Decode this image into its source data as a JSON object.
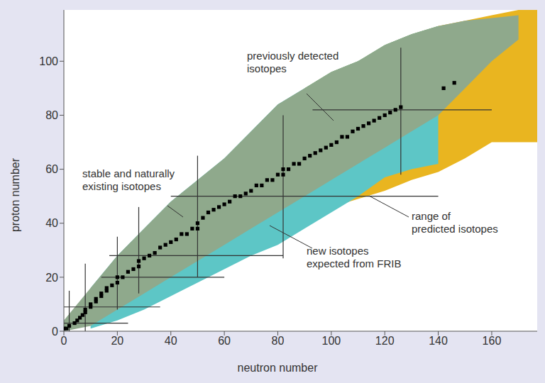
{
  "chart_data": {
    "type": "area",
    "x_label": "neutron number",
    "y_label": "proton number",
    "xlim": [
      0,
      177
    ],
    "xticks": [
      0,
      20,
      40,
      60,
      80,
      100,
      120,
      140,
      160
    ],
    "ylim": [
      0,
      119
    ],
    "yticks": [
      0,
      20,
      40,
      60,
      80,
      100
    ],
    "grid": false,
    "series": [
      {
        "type": "area",
        "color": "#e9b520",
        "x": [
          90,
          100,
          110,
          120,
          130,
          140,
          150,
          160,
          170,
          177
        ],
        "lower": [
          42,
          46,
          49,
          52,
          56,
          59,
          64,
          70,
          70,
          70
        ],
        "upper": [
          90,
          96,
          100,
          106,
          110,
          113,
          115,
          117,
          119,
          119
        ]
      },
      {
        "type": "area",
        "color": "#5dc6c6",
        "x": [
          10,
          20,
          30,
          40,
          50,
          60,
          70,
          80,
          90,
          100,
          110,
          120,
          130,
          140
        ],
        "lower": [
          1,
          4,
          8,
          13,
          18,
          23,
          28,
          32,
          38,
          44,
          50,
          57,
          60,
          62
        ],
        "upper": [
          16,
          28,
          38,
          48,
          56,
          64,
          74,
          84,
          90,
          96,
          100,
          106,
          110,
          113
        ]
      },
      {
        "type": "area",
        "color": "#8fa98c",
        "x": [
          0,
          10,
          20,
          30,
          40,
          50,
          60,
          70,
          80,
          90,
          100,
          110,
          120,
          130,
          140,
          150,
          160,
          170
        ],
        "lower": [
          0,
          2,
          8,
          14,
          20,
          26,
          32,
          38,
          44,
          50,
          56,
          62,
          68,
          74,
          80,
          90,
          100,
          108
        ],
        "upper": [
          4,
          16,
          28,
          38,
          48,
          56,
          64,
          74,
          84,
          90,
          96,
          100,
          106,
          110,
          113,
          115,
          116,
          117
        ]
      },
      {
        "type": "scatter",
        "color": "#000000",
        "marker": "square",
        "x": [
          0,
          1,
          2,
          4,
          5,
          6,
          7,
          8,
          8,
          10,
          10,
          12,
          12,
          14,
          14,
          16,
          16,
          18,
          20,
          20,
          22,
          24,
          26,
          28,
          28,
          30,
          32,
          34,
          36,
          38,
          40,
          42,
          44,
          46,
          48,
          50,
          50,
          52,
          54,
          56,
          58,
          60,
          62,
          64,
          66,
          68,
          70,
          72,
          74,
          76,
          78,
          80,
          82,
          82,
          84,
          86,
          88,
          90,
          92,
          94,
          96,
          98,
          100,
          102,
          104,
          106,
          108,
          110,
          112,
          114,
          116,
          118,
          120,
          122,
          124,
          126,
          142,
          146
        ],
        "y": [
          1,
          1,
          2,
          3,
          4,
          5,
          6,
          7,
          8,
          9,
          10,
          11,
          12,
          13,
          14,
          15,
          16,
          17,
          18,
          20,
          20,
          22,
          23,
          24,
          26,
          27,
          28,
          29,
          31,
          32,
          33,
          34,
          36,
          36,
          38,
          38,
          40,
          42,
          44,
          45,
          46,
          47,
          48,
          50,
          50,
          51,
          52,
          54,
          54,
          56,
          56,
          58,
          58,
          60,
          60,
          62,
          62,
          64,
          65,
          66,
          67,
          68,
          69,
          70,
          72,
          72,
          74,
          75,
          76,
          77,
          78,
          79,
          80,
          81,
          82,
          83,
          90,
          92
        ]
      }
    ],
    "magic_lines": {
      "proton": [
        {
          "value": 3,
          "from": 0,
          "to": 24
        },
        {
          "value": 9,
          "from": 0,
          "to": 36
        },
        {
          "value": 20,
          "from": 14,
          "to": 60
        },
        {
          "value": 28,
          "from": 17,
          "to": 82
        },
        {
          "value": 50,
          "from": 40,
          "to": 140
        },
        {
          "value": 82,
          "from": 93,
          "to": 160
        }
      ],
      "neutron": [
        {
          "value": 2,
          "from": 0,
          "to": 15
        },
        {
          "value": 8,
          "from": 0,
          "to": 25
        },
        {
          "value": 20,
          "from": 8,
          "to": 35
        },
        {
          "value": 28,
          "from": 14,
          "to": 46
        },
        {
          "value": 50,
          "from": 20,
          "to": 65
        },
        {
          "value": 82,
          "from": 27,
          "to": 80
        },
        {
          "value": 126,
          "from": 58,
          "to": 105
        }
      ]
    },
    "annotations": [
      {
        "text": [
          "previously detected",
          "isotopes"
        ]
      },
      {
        "text": [
          "stable and naturally",
          "existing isotopes"
        ]
      },
      {
        "text": [
          "new isotopes",
          "expected from FRIB"
        ]
      },
      {
        "text": [
          "range of",
          "predicted isotopes"
        ]
      }
    ]
  }
}
